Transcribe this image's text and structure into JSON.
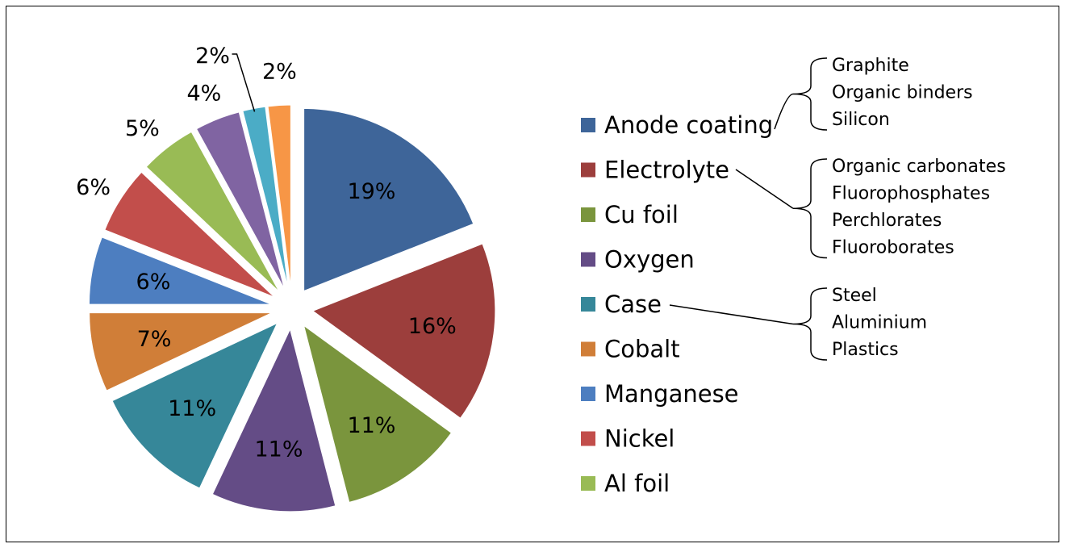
{
  "chart_data": {
    "type": "pie",
    "exploded": true,
    "title": "",
    "legend_position": "right",
    "slices": [
      {
        "name": "Anode coating",
        "value": 19,
        "label": "19%",
        "color": "#3e6599"
      },
      {
        "name": "Electrolyte",
        "value": 16,
        "label": "16%",
        "color": "#9c3e3c"
      },
      {
        "name": "Cu foil",
        "value": 11,
        "label": "11%",
        "color": "#7a953d"
      },
      {
        "name": "Oxygen",
        "value": 11,
        "label": "11%",
        "color": "#644c86"
      },
      {
        "name": "Case",
        "value": 11,
        "label": "11%",
        "color": "#368799"
      },
      {
        "name": "Cobalt",
        "value": 7,
        "label": "7%",
        "color": "#d07e38"
      },
      {
        "name": "Manganese",
        "value": 6,
        "label": "6%",
        "color": "#4d7ec0"
      },
      {
        "name": "Nickel",
        "value": 6,
        "label": "6%",
        "color": "#c24e4b"
      },
      {
        "name": "Al foil",
        "value": 5,
        "label": "5%",
        "color": "#99bb55"
      },
      {
        "name": "",
        "value": 4,
        "label": "4%",
        "color": "#8064a2"
      },
      {
        "name": "",
        "value": 2,
        "label": "2%",
        "color": "#4bacc6"
      },
      {
        "name": "",
        "value": 2,
        "label": "2%",
        "color": "#f79646"
      }
    ],
    "annotations": [
      {
        "target": "Anode coating",
        "items": [
          "Graphite",
          "Organic binders",
          "Silicon"
        ]
      },
      {
        "target": "Electrolyte",
        "items": [
          "Organic carbonates",
          "Fluorophosphates",
          "Perchlorates",
          "Fluoroborates"
        ]
      },
      {
        "target": "Case",
        "items": [
          "Steel",
          "Aluminium",
          "Plastics"
        ]
      }
    ]
  }
}
